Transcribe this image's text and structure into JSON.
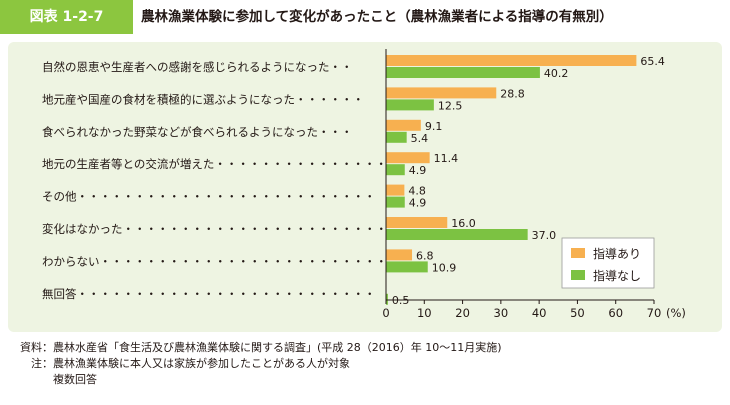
{
  "header": {
    "figure_id": "図表 1-2-7",
    "title": "農林漁業体験に参加して変化があったこと（農林漁業者による指導の有無別）"
  },
  "chart_data": {
    "type": "bar",
    "orientation": "horizontal",
    "categories": [
      "自然の恩恵や生産者への感謝を感じられるようになった",
      "地元産や国産の食材を積極的に選ぶようになった",
      "食べられなかった野菜などが食べられるようになった",
      "地元の生産者等との交流が増えた",
      "その他",
      "変化はなかった",
      "わからない",
      "無回答"
    ],
    "category_labels": [
      "自然の恩恵や生産者への感謝を感じられるようになった・・",
      "地元産や国産の食材を積極的に選ぶようになった・・・・・・",
      "食べられなかった野菜などが食べられるようになった・・・",
      "地元の生産者等との交流が増えた・・・・・・・・・・・・・・・",
      "その他・・・・・・・・・・・・・・・・・・・・・・・・・・",
      "変化はなかった・・・・・・・・・・・・・・・・・・・・・・・",
      "わからない・・・・・・・・・・・・・・・・・・・・・・・・・",
      "無回答・・・・・・・・・・・・・・・・・・・・・・・・・・"
    ],
    "series": [
      {
        "name": "指導あり",
        "color": "#f7b050",
        "values": [
          65.4,
          28.8,
          9.1,
          11.4,
          4.8,
          16.0,
          6.8,
          null
        ],
        "labels": [
          "65.4",
          "28.8",
          "9.1",
          "11.4",
          "4.8",
          "16.0",
          "6.8",
          ""
        ]
      },
      {
        "name": "指導なし",
        "color": "#7cc242",
        "values": [
          40.2,
          12.5,
          5.4,
          4.9,
          4.9,
          37.0,
          10.9,
          0.5
        ],
        "labels": [
          "40.2",
          "12.5",
          "5.4",
          "4.9",
          "4.9",
          "37.0",
          "10.9",
          "0.5"
        ]
      }
    ],
    "xlim": [
      0,
      70
    ],
    "xticks": [
      "0",
      "10",
      "20",
      "30",
      "40",
      "50",
      "60",
      "70"
    ],
    "unit_label": "(%)",
    "legend_position": "bottom-right",
    "grid": false
  },
  "notes": {
    "source_label": "資料：",
    "source_text": "農林水産省「食生活及び農林漁業体験に関する調査」(平成 28（2016）年 10～11月実施)",
    "note_label": "注：",
    "note_lines": [
      "農林漁業体験に本人又は家族が参加したことがある人が対象",
      "複数回答"
    ]
  }
}
